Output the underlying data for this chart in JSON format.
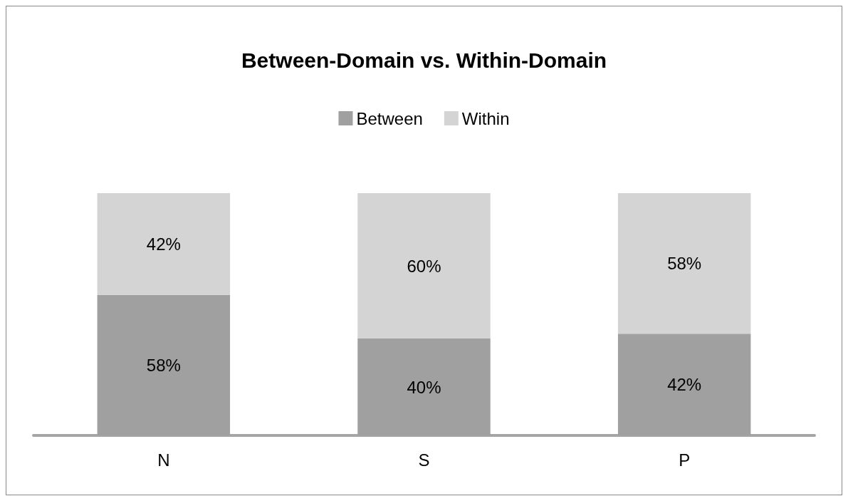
{
  "chart_data": {
    "type": "bar",
    "title": "Between-Domain vs. Within-Domain",
    "categories": [
      "N",
      "S",
      "P"
    ],
    "stacked": true,
    "legend": "top",
    "grid": false,
    "series": [
      {
        "name": "Between",
        "color": "#a0a0a0",
        "values": [
          58,
          40,
          42
        ],
        "value_labels": [
          "58%",
          "40%",
          "42%"
        ]
      },
      {
        "name": "Within",
        "color": "#d4d4d4",
        "values": [
          42,
          60,
          58
        ],
        "value_labels": [
          "42%",
          "60%",
          "58%"
        ]
      }
    ]
  }
}
